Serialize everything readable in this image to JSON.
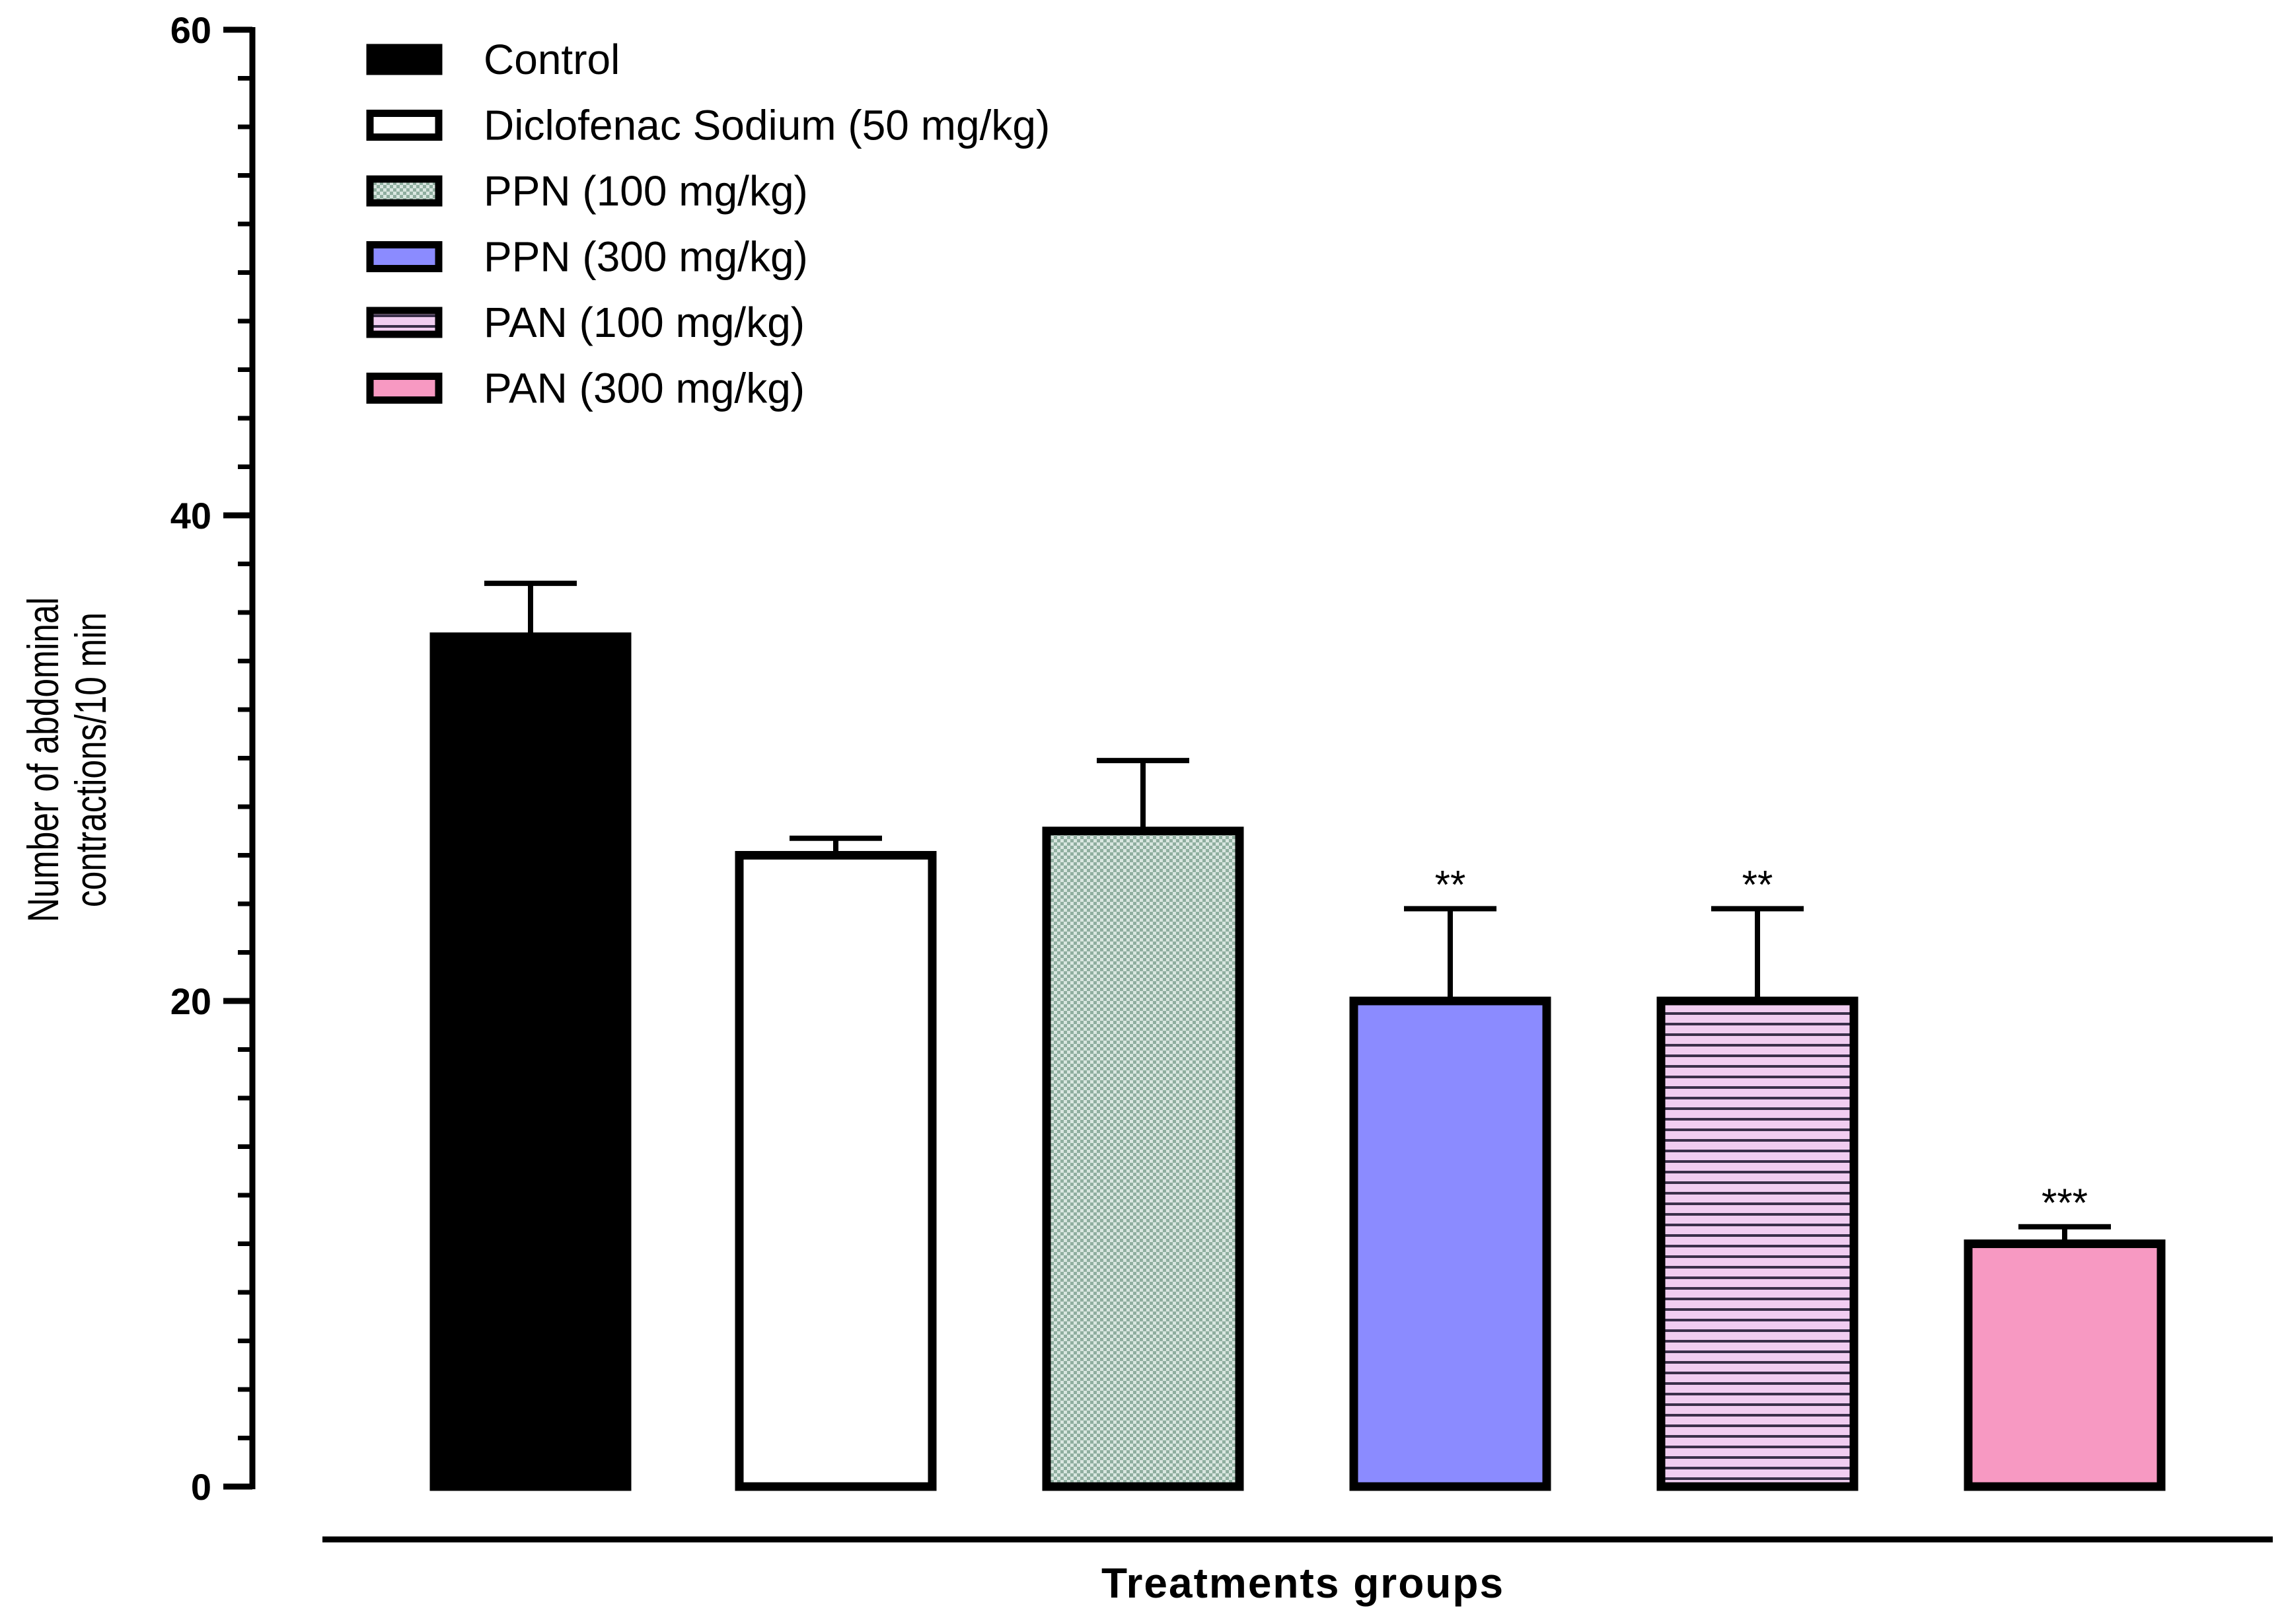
{
  "chart_data": {
    "type": "bar",
    "xlabel": "Treatments groups",
    "ylabel_lines": [
      "Number of abdominal",
      "contractions/10 min"
    ],
    "ylim": [
      0,
      60
    ],
    "yticks": [
      0,
      20,
      40,
      60
    ],
    "ytick_labels": [
      "0",
      "20",
      "40",
      "60"
    ],
    "minor_tick_step": 2,
    "grid": false,
    "legend_position": "top-left",
    "series": [
      {
        "name": "Control",
        "value": 35,
        "error": 2.2,
        "significance": "",
        "fill": "#000000",
        "pattern": "solid"
      },
      {
        "name": "Diclofenac Sodium (50 mg/kg)",
        "value": 26,
        "error": 0.7,
        "significance": "",
        "fill": "#ffffff",
        "pattern": "solid"
      },
      {
        "name": "PPN (100 mg/kg)",
        "value": 27,
        "error": 2.9,
        "significance": "",
        "fill": "#a9c4b7",
        "pattern": "checker"
      },
      {
        "name": "PPN (300 mg/kg)",
        "value": 20,
        "error": 3.8,
        "significance": "**",
        "fill": "#8b8bff",
        "pattern": "solid"
      },
      {
        "name": "PAN (100 mg/kg)",
        "value": 20,
        "error": 3.8,
        "significance": "**",
        "fill": "#eec6ee",
        "pattern": "hlines"
      },
      {
        "name": "PAN (300 mg/kg)",
        "value": 10,
        "error": 0.7,
        "significance": "***",
        "fill": "#f799c2",
        "pattern": "solid"
      }
    ]
  }
}
